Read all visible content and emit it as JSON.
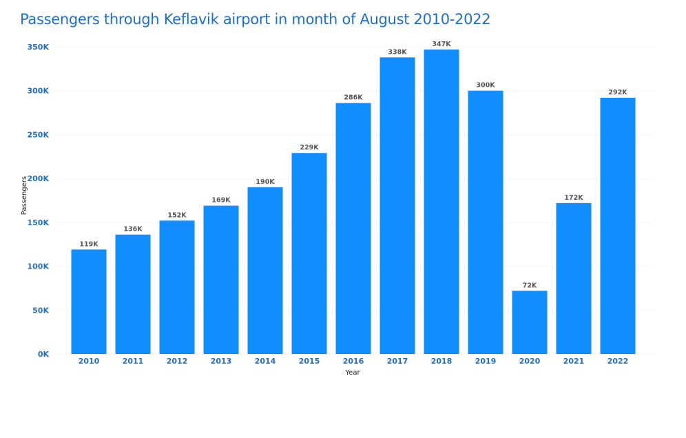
{
  "chart_data": {
    "type": "bar",
    "title": "Passengers through Keflavik airport in month of August 2010-2022",
    "xlabel": "Year",
    "ylabel": "Passengers",
    "categories": [
      "2010",
      "2011",
      "2012",
      "2013",
      "2014",
      "2015",
      "2016",
      "2017",
      "2018",
      "2019",
      "2020",
      "2021",
      "2022"
    ],
    "values": [
      119000,
      136000,
      152000,
      169000,
      190000,
      229000,
      286000,
      338000,
      347000,
      300000,
      72000,
      172000,
      292000
    ],
    "data_labels": [
      "119K",
      "136K",
      "152K",
      "169K",
      "190K",
      "229K",
      "286K",
      "338K",
      "347K",
      "300K",
      "72K",
      "172K",
      "292K"
    ],
    "y_ticks": [
      0,
      50000,
      100000,
      150000,
      200000,
      250000,
      300000,
      350000
    ],
    "y_tick_labels": [
      "0K",
      "50K",
      "100K",
      "150K",
      "200K",
      "250K",
      "300K",
      "350K"
    ],
    "ylim": [
      0,
      350000
    ],
    "grid": true,
    "bar_color": "#118DFF",
    "title_color": "#1F6FC5"
  }
}
